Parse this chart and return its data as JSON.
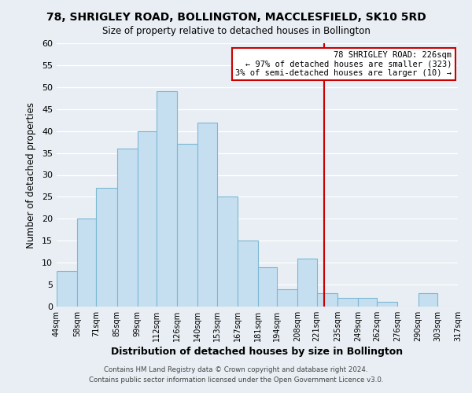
{
  "title": "78, SHRIGLEY ROAD, BOLLINGTON, MACCLESFIELD, SK10 5RD",
  "subtitle": "Size of property relative to detached houses in Bollington",
  "xlabel": "Distribution of detached houses by size in Bollington",
  "ylabel": "Number of detached properties",
  "bar_labels": [
    "44sqm",
    "58sqm",
    "71sqm",
    "85sqm",
    "99sqm",
    "112sqm",
    "126sqm",
    "140sqm",
    "153sqm",
    "167sqm",
    "181sqm",
    "194sqm",
    "208sqm",
    "221sqm",
    "235sqm",
    "249sqm",
    "262sqm",
    "276sqm",
    "290sqm",
    "303sqm",
    "317sqm"
  ],
  "bar_heights": [
    8,
    20,
    27,
    36,
    40,
    49,
    37,
    42,
    25,
    15,
    9,
    4,
    11,
    3,
    2,
    2,
    1,
    0,
    3,
    0
  ],
  "bar_edges": [
    44,
    58,
    71,
    85,
    99,
    112,
    126,
    140,
    153,
    167,
    181,
    194,
    208,
    221,
    235,
    249,
    262,
    276,
    290,
    303,
    317
  ],
  "bar_color": "#c6dff0",
  "bar_edgecolor": "#7bb8d4",
  "vline_x": 226,
  "vline_color": "#cc0000",
  "ylim": [
    0,
    60
  ],
  "yticks": [
    0,
    5,
    10,
    15,
    20,
    25,
    30,
    35,
    40,
    45,
    50,
    55,
    60
  ],
  "annotation_title": "78 SHRIGLEY ROAD: 226sqm",
  "annotation_line1": "← 97% of detached houses are smaller (323)",
  "annotation_line2": "3% of semi-detached houses are larger (10) →",
  "annotation_box_color": "#ffffff",
  "annotation_border_color": "#cc0000",
  "footer1": "Contains HM Land Registry data © Crown copyright and database right 2024.",
  "footer2": "Contains public sector information licensed under the Open Government Licence v3.0.",
  "background_color": "#e8eef4",
  "grid_color": "#ffffff"
}
